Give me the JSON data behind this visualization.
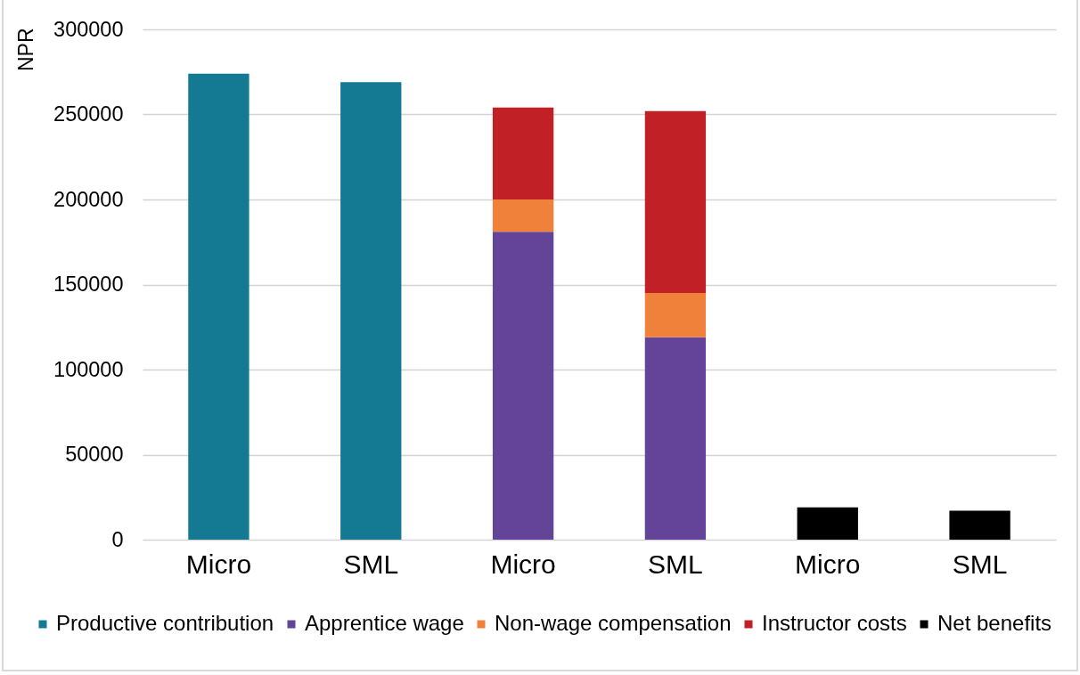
{
  "chart_data": {
    "type": "bar",
    "stacked": true,
    "ylabel": "NPR",
    "categories": [
      "Micro",
      "SML",
      "Micro",
      "SML",
      "Micro",
      "SML"
    ],
    "series": [
      {
        "name": "Productive contribution",
        "color": "#147a94",
        "values": [
          274000,
          269000,
          null,
          null,
          null,
          null
        ]
      },
      {
        "name": "Apprentice wage",
        "color": "#634499",
        "values": [
          null,
          null,
          181000,
          119000,
          null,
          null
        ]
      },
      {
        "name": "Non-wage compensation",
        "color": "#f0813a",
        "values": [
          null,
          null,
          19000,
          26000,
          null,
          null
        ]
      },
      {
        "name": "Instructor costs",
        "color": "#c12026",
        "values": [
          null,
          null,
          54000,
          107000,
          null,
          null
        ]
      },
      {
        "name": "Net benefits",
        "color": "#000000",
        "values": [
          null,
          null,
          null,
          null,
          19000,
          17000
        ]
      }
    ],
    "ylim": [
      0,
      300000
    ],
    "yticks": [
      0,
      50000,
      100000,
      150000,
      200000,
      250000,
      300000
    ],
    "grid": "y",
    "legend": "bottom"
  }
}
